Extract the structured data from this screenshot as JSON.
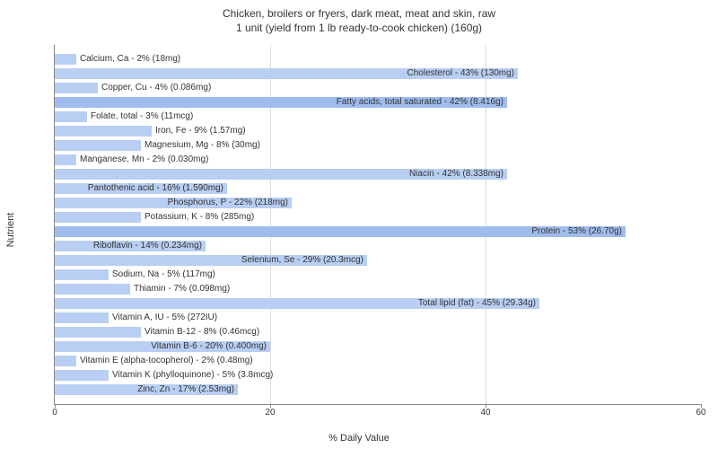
{
  "title_line1": "Chicken, broilers or fryers, dark meat, meat and skin, raw",
  "title_line2": "1 unit (yield from 1 lb ready-to-cook chicken) (160g)",
  "x_axis_label": "% Daily Value",
  "y_axis_label": "Nutrient",
  "type": "horizontal-bar",
  "xlim": [
    0,
    60
  ],
  "xtick_step": 20,
  "xticks": [
    0,
    20,
    40,
    60
  ],
  "bar_color": "#b8cef2",
  "highlight_color": "#9fbced",
  "background_color": "#ffffff",
  "grid_color": "#dddddd",
  "text_color": "#333333",
  "label_fontsize": 10,
  "title_fontsize": 12,
  "bars": [
    {
      "label": "Calcium, Ca - 2% (18mg)",
      "value": 2,
      "highlight": false
    },
    {
      "label": "Cholesterol - 43% (130mg)",
      "value": 43,
      "highlight": false
    },
    {
      "label": "Copper, Cu - 4% (0.086mg)",
      "value": 4,
      "highlight": false
    },
    {
      "label": "Fatty acids, total saturated - 42% (8.416g)",
      "value": 42,
      "highlight": true
    },
    {
      "label": "Folate, total - 3% (11mcg)",
      "value": 3,
      "highlight": false
    },
    {
      "label": "Iron, Fe - 9% (1.57mg)",
      "value": 9,
      "highlight": false
    },
    {
      "label": "Magnesium, Mg - 8% (30mg)",
      "value": 8,
      "highlight": false
    },
    {
      "label": "Manganese, Mn - 2% (0.030mg)",
      "value": 2,
      "highlight": false
    },
    {
      "label": "Niacin - 42% (8.338mg)",
      "value": 42,
      "highlight": false
    },
    {
      "label": "Pantothenic acid - 16% (1.590mg)",
      "value": 16,
      "highlight": false
    },
    {
      "label": "Phosphorus, P - 22% (218mg)",
      "value": 22,
      "highlight": false
    },
    {
      "label": "Potassium, K - 8% (285mg)",
      "value": 8,
      "highlight": false
    },
    {
      "label": "Protein - 53% (26.70g)",
      "value": 53,
      "highlight": true
    },
    {
      "label": "Riboflavin - 14% (0.234mg)",
      "value": 14,
      "highlight": false
    },
    {
      "label": "Selenium, Se - 29% (20.3mcg)",
      "value": 29,
      "highlight": false
    },
    {
      "label": "Sodium, Na - 5% (117mg)",
      "value": 5,
      "highlight": false
    },
    {
      "label": "Thiamin - 7% (0.098mg)",
      "value": 7,
      "highlight": false
    },
    {
      "label": "Total lipid (fat) - 45% (29.34g)",
      "value": 45,
      "highlight": false
    },
    {
      "label": "Vitamin A, IU - 5% (272IU)",
      "value": 5,
      "highlight": false
    },
    {
      "label": "Vitamin B-12 - 8% (0.46mcg)",
      "value": 8,
      "highlight": false
    },
    {
      "label": "Vitamin B-6 - 20% (0.400mg)",
      "value": 20,
      "highlight": false
    },
    {
      "label": "Vitamin E (alpha-tocopherol) - 2% (0.48mg)",
      "value": 2,
      "highlight": false
    },
    {
      "label": "Vitamin K (phylloquinone) - 5% (3.8mcg)",
      "value": 5,
      "highlight": false
    },
    {
      "label": "Zinc, Zn - 17% (2.53mg)",
      "value": 17,
      "highlight": false
    }
  ]
}
